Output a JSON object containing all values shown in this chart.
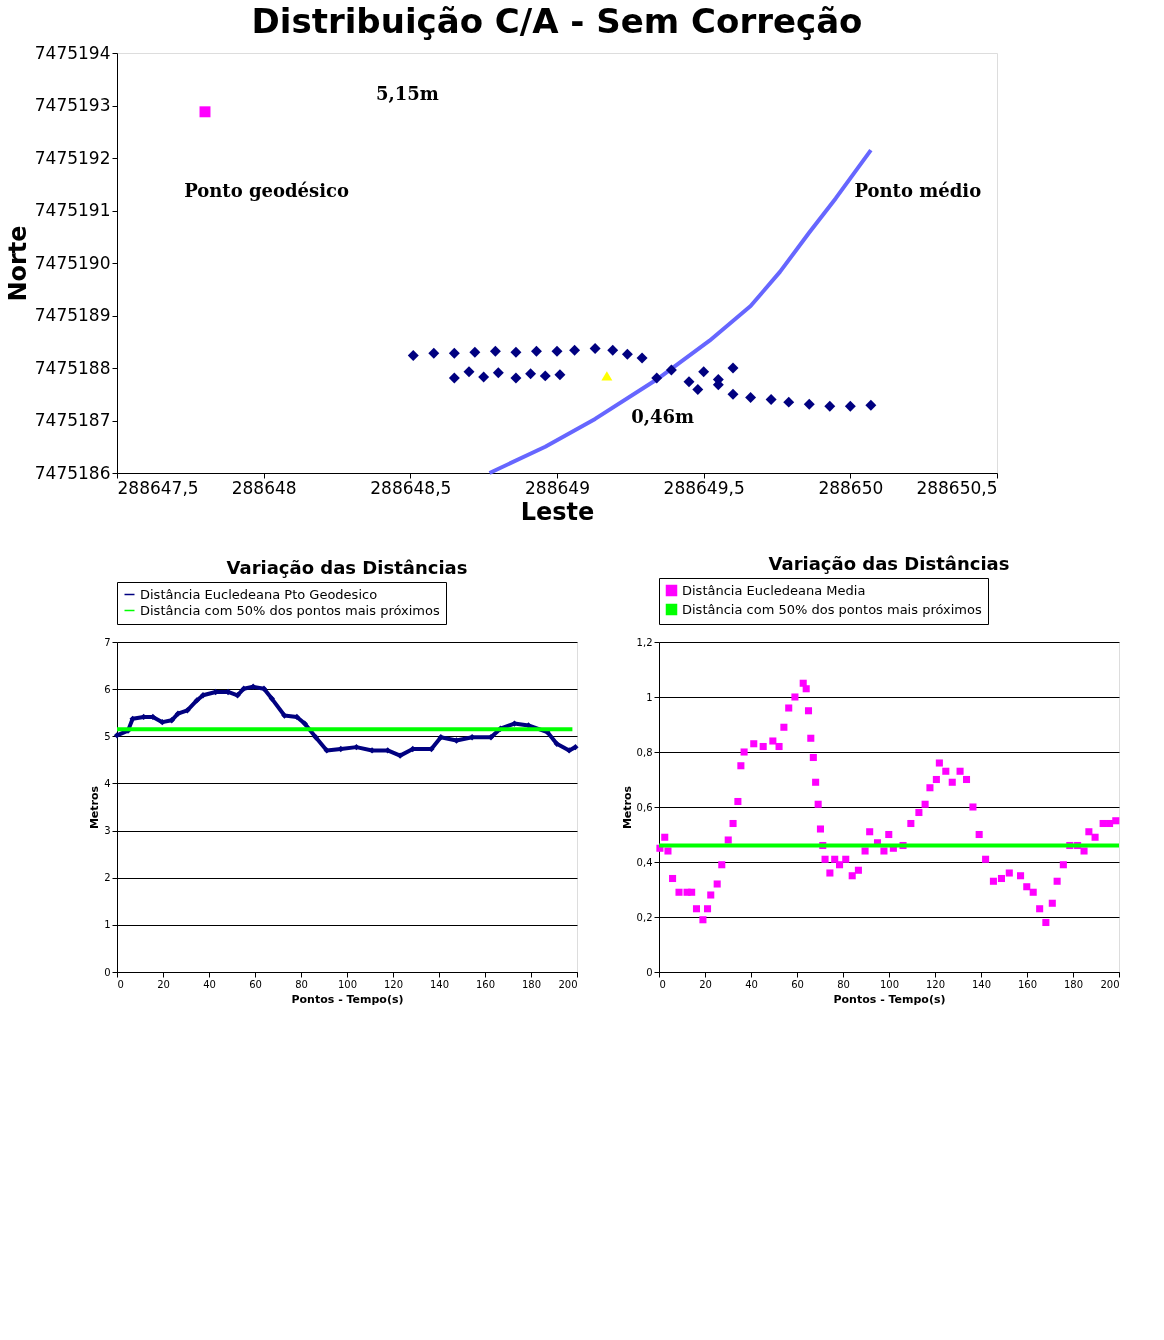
{
  "chart_data": [
    {
      "type": "scatter",
      "title": "Distribuição C/A - Sem Correção",
      "xlabel": "Leste",
      "ylabel": "Norte",
      "xlim": [
        288647.5,
        288650.5
      ],
      "ylim": [
        7475186,
        7475194
      ],
      "xticks": [
        {
          "value": 288647.5,
          "label": "288647,5"
        },
        288648,
        {
          "value": 288648.5,
          "label": "288648,5"
        },
        288649,
        {
          "value": 288649.5,
          "label": "288649,5"
        },
        288650,
        {
          "value": 288650.5,
          "label": "288650,5"
        }
      ],
      "yticks": [
        7475186,
        7475187,
        7475188,
        7475189,
        7475190,
        7475191,
        7475192,
        7475193,
        7475194
      ],
      "grid": false,
      "legend": false,
      "series": [
        {
          "type": "line",
          "color": "#6666ff",
          "marker": "none",
          "x": [
            288648.77,
            288648.96,
            288649.13,
            288649.34,
            288649.52,
            288649.66,
            288649.76,
            288649.86,
            288649.95,
            288650.07
          ],
          "values": [
            7475186.0,
            7475186.5,
            7475187.03,
            7475187.78,
            7475188.52,
            7475189.18,
            7475189.83,
            7475190.58,
            7475191.23,
            7475192.15
          ]
        },
        {
          "color": "#000080",
          "marker": "diamond",
          "x": [
            288648.51,
            288648.58,
            288648.65,
            288648.72,
            288648.79,
            288648.86,
            288648.93,
            288649.0,
            288649.06,
            288649.13,
            288649.19,
            288649.24,
            288649.29,
            288648.65,
            288648.7,
            288648.75,
            288648.8,
            288648.86,
            288648.91,
            288648.96,
            288649.01,
            288649.34,
            288649.39,
            288649.45,
            288649.5,
            288649.55,
            288649.6,
            288649.48,
            288649.55,
            288649.6,
            288649.66,
            288649.73,
            288649.79,
            288649.86,
            288649.93,
            288650.0,
            288650.07
          ],
          "values": [
            7475188.24,
            7475188.28,
            7475188.28,
            7475188.3,
            7475188.32,
            7475188.3,
            7475188.32,
            7475188.32,
            7475188.34,
            7475188.37,
            7475188.34,
            7475188.26,
            7475188.19,
            7475187.81,
            7475187.93,
            7475187.83,
            7475187.91,
            7475187.81,
            7475187.89,
            7475187.85,
            7475187.87,
            7475187.81,
            7475187.96,
            7475187.74,
            7475187.93,
            7475187.68,
            7475188.0,
            7475187.59,
            7475187.78,
            7475187.5,
            7475187.44,
            7475187.4,
            7475187.35,
            7475187.31,
            7475187.27,
            7475187.27,
            7475187.29
          ]
        },
        {
          "color": "#ff00ff",
          "marker": "square",
          "x": [
            288647.8
          ],
          "values": [
            7475192.88
          ]
        },
        {
          "color": "#ffff00",
          "marker": "triangle",
          "x": [
            288649.17
          ],
          "values": [
            7475187.85
          ]
        }
      ],
      "annotations": [
        "5,15m",
        "Ponto geodésico",
        "Ponto médio",
        "0,46m"
      ]
    },
    {
      "type": "line",
      "title": "Variação das Distâncias",
      "xlabel": "Pontos - Tempo(s)",
      "ylabel": "Metros",
      "xlim": [
        0,
        200
      ],
      "ylim": [
        0,
        7
      ],
      "xticks": [
        0,
        20,
        40,
        60,
        80,
        100,
        120,
        140,
        160,
        180,
        200
      ],
      "yticks": [
        0,
        1,
        2,
        3,
        4,
        5,
        6,
        7
      ],
      "grid": "y",
      "legend": "top",
      "series": [
        {
          "name": "Distância Eucledeana Pto Geodesico",
          "color": "#000080",
          "marker": "diamond",
          "x": [
            0,
            4.8,
            6.8,
            11.6,
            15.6,
            19.7,
            23.8,
            26.5,
            30.6,
            34.7,
            37.4,
            42.9,
            48.3,
            52.4,
            55.1,
            59.2,
            63.9,
            67.3,
            72.8,
            78.2,
            81.6,
            86.4,
            91.2,
            97.3,
            104.1,
            110.9,
            117.7,
            123.1,
            128.6,
            136.7,
            140.8,
            147.6,
            154.4,
            162.6,
            166.7,
            172.8,
            178.9,
            187.1,
            191.2,
            196.6,
            199.3
          ],
          "values": [
            5.02,
            5.12,
            5.37,
            5.41,
            5.41,
            5.3,
            5.34,
            5.48,
            5.55,
            5.76,
            5.87,
            5.94,
            5.94,
            5.87,
            6.01,
            6.05,
            6.01,
            5.8,
            5.44,
            5.41,
            5.27,
            4.98,
            4.7,
            4.73,
            4.77,
            4.7,
            4.7,
            4.59,
            4.73,
            4.73,
            4.98,
            4.91,
            4.98,
            4.98,
            5.16,
            5.27,
            5.23,
            5.09,
            4.84,
            4.7,
            4.77
          ]
        },
        {
          "name": "Distância com 50% dos pontos mais próximos",
          "color": "#00ff00",
          "marker": "none",
          "x": [
            0,
            198
          ],
          "values": [
            5.15,
            5.15
          ]
        }
      ]
    },
    {
      "type": "line",
      "title": "Variação das Distâncias",
      "xlabel": "Pontos - Tempo(s)",
      "ylabel": "Metros",
      "xlim": [
        0,
        200
      ],
      "ylim": [
        0,
        1.2
      ],
      "xticks": [
        0,
        20,
        40,
        60,
        80,
        100,
        120,
        140,
        160,
        180,
        200
      ],
      "yticks": [
        0,
        {
          "value": 0.2,
          "label": "0,2"
        },
        {
          "value": 0.4,
          "label": "0,4"
        },
        {
          "value": 0.6,
          "label": "0,6"
        },
        {
          "value": 0.8,
          "label": "0,8"
        },
        1,
        {
          "value": 1.2,
          "label": "1,2"
        }
      ],
      "grid": "y",
      "legend": "top",
      "series": [
        {
          "name": "Distância Eucledeana Media",
          "type": "scatter",
          "color": "#ff00ff",
          "marker": "square",
          "x": [
            0.4,
            2.5,
            3.9,
            5.9,
            8.7,
            12.2,
            14.2,
            16.3,
            19.1,
            21.1,
            22.5,
            25.3,
            27.3,
            30.1,
            32.2,
            34.3,
            35.6,
            37.0,
            41.2,
            45.3,
            49.5,
            52.2,
            54.3,
            56.4,
            59.1,
            62.7,
            64.0,
            65.0,
            66.0,
            67.1,
            68.1,
            69.2,
            70.2,
            71.2,
            72.2,
            74.3,
            76.4,
            78.5,
            81.2,
            84.0,
            86.7,
            89.6,
            91.6,
            95.0,
            97.8,
            99.9,
            101.9,
            106.1,
            109.5,
            113.0,
            115.7,
            117.8,
            120.6,
            121.9,
            124.7,
            127.5,
            130.9,
            133.7,
            136.5,
            139.2,
            142.0,
            145.4,
            148.9,
            152.3,
            157.2,
            159.9,
            162.7,
            165.5,
            168.2,
            171.0,
            173.1,
            175.8,
            178.6,
            182.0,
            184.8,
            186.9,
            189.6,
            193.1,
            195.9,
            198.6
          ],
          "values": [
            0.45,
            0.49,
            0.44,
            0.34,
            0.29,
            0.29,
            0.29,
            0.23,
            0.19,
            0.23,
            0.28,
            0.32,
            0.39,
            0.48,
            0.54,
            0.62,
            0.75,
            0.8,
            0.83,
            0.82,
            0.84,
            0.82,
            0.89,
            0.96,
            1.0,
            1.05,
            1.03,
            0.95,
            0.85,
            0.78,
            0.69,
            0.61,
            0.52,
            0.46,
            0.41,
            0.36,
            0.41,
            0.39,
            0.41,
            0.35,
            0.37,
            0.44,
            0.51,
            0.47,
            0.44,
            0.5,
            0.45,
            0.46,
            0.54,
            0.58,
            0.61,
            0.67,
            0.7,
            0.76,
            0.73,
            0.69,
            0.73,
            0.7,
            0.6,
            0.5,
            0.41,
            0.33,
            0.34,
            0.36,
            0.35,
            0.31,
            0.29,
            0.23,
            0.18,
            0.25,
            0.33,
            0.39,
            0.46,
            0.46,
            0.44,
            0.51,
            0.49,
            0.54,
            0.54,
            0.55
          ]
        },
        {
          "name": "Distância com 50% dos pontos mais próximos",
          "color": "#00ff00",
          "marker": "none",
          "x": [
            0,
            200
          ],
          "values": [
            0.46,
            0.46
          ]
        }
      ]
    }
  ]
}
